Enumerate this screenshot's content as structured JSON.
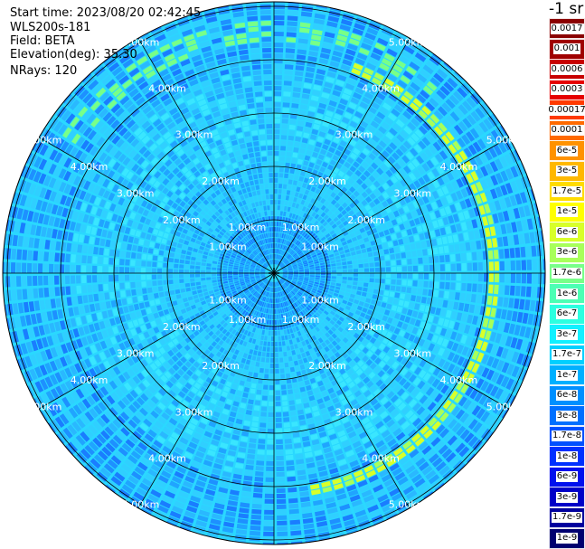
{
  "header": {
    "start_time": "Start time: 2023/08/20 02:42:45",
    "instrument": "WLS200s-181",
    "field": "Field: BETA",
    "elevation": "Elevation(deg): 35.30",
    "nrays": "NRays: 120"
  },
  "colorbar": {
    "units": "-1 sr",
    "labels": [
      "0.0017",
      "0.001",
      "0.0006",
      "0.0003",
      "0.00017",
      "0.0001",
      "6e-5",
      "3e-5",
      "1.7e-5",
      "1e-5",
      "6e-6",
      "3e-6",
      "1.7e-6",
      "1e-6",
      "6e-7",
      "3e-7",
      "1.7e-7",
      "1e-7",
      "6e-8",
      "3e-8",
      "1.7e-8",
      "1e-8",
      "6e-9",
      "3e-9",
      "1.7e-9",
      "1e-9"
    ],
    "colors": [
      "#8b0000",
      "#a00000",
      "#c80000",
      "#e60000",
      "#ff3a00",
      "#ff6a00",
      "#ff9200",
      "#ffb800",
      "#ffdc00",
      "#ffff00",
      "#d8ff2a",
      "#a8ff5a",
      "#78ff88",
      "#4cffb4",
      "#2cffe0",
      "#12f0ff",
      "#00d0ff",
      "#00b0ff",
      "#0090ff",
      "#0070ff",
      "#0050ff",
      "#0030ff",
      "#0010ee",
      "#0000c8",
      "#00009e",
      "#000070"
    ]
  },
  "range_rings": {
    "labels": [
      "1.00km",
      "2.00km",
      "3.00km",
      "4.00km",
      "5.00km"
    ],
    "values_km": [
      1,
      2,
      3,
      4,
      5
    ]
  }
}
